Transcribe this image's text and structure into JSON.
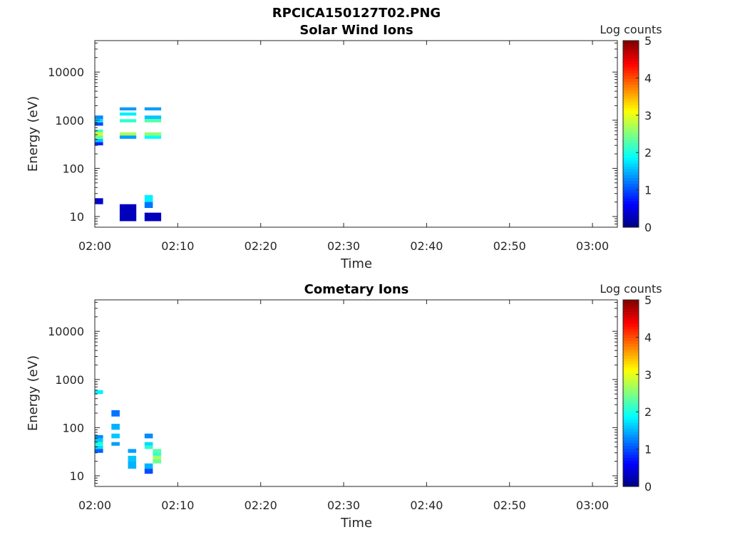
{
  "figure": {
    "title": "RPCICA150127T02.PNG"
  },
  "chart_data": [
    {
      "type": "heatmap",
      "title": "Solar Wind Ions",
      "xlabel": "Time",
      "ylabel": "Energy (eV)",
      "yscale": "log",
      "xlim": [
        "02:00",
        "03:03"
      ],
      "ylim": [
        6,
        45000
      ],
      "xticks": [
        "02:00",
        "02:10",
        "02:20",
        "02:30",
        "02:40",
        "02:50",
        "03:00"
      ],
      "yticks": [
        "10",
        "100",
        "1000",
        "10000"
      ],
      "colorbar": {
        "label": "Log counts",
        "range": [
          0,
          5
        ],
        "ticks": [
          "0",
          "1",
          "2",
          "3",
          "4",
          "5"
        ],
        "colormap": "jet"
      },
      "cells": [
        {
          "t0": "02:00",
          "t1": "02:01",
          "e0": 1050,
          "e1": 1250,
          "v": 1.3
        },
        {
          "t0": "02:00",
          "t1": "02:01",
          "e0": 900,
          "e1": 1050,
          "v": 1.7
        },
        {
          "t0": "02:00",
          "t1": "02:01",
          "e0": 770,
          "e1": 900,
          "v": 1.0
        },
        {
          "t0": "02:00",
          "t1": "02:01",
          "e0": 560,
          "e1": 640,
          "v": 2.2
        },
        {
          "t0": "02:00",
          "t1": "02:01",
          "e0": 480,
          "e1": 560,
          "v": 2.9
        },
        {
          "t0": "02:00",
          "t1": "02:01",
          "e0": 410,
          "e1": 480,
          "v": 2.4
        },
        {
          "t0": "02:00",
          "t1": "02:01",
          "e0": 350,
          "e1": 410,
          "v": 1.6
        },
        {
          "t0": "02:00",
          "t1": "02:01",
          "e0": 300,
          "e1": 350,
          "v": 0.8
        },
        {
          "t0": "02:00",
          "t1": "02:01",
          "e0": 18,
          "e1": 24,
          "v": 0.4
        },
        {
          "t0": "02:03",
          "t1": "02:05",
          "e0": 1600,
          "e1": 1850,
          "v": 1.4
        },
        {
          "t0": "02:03",
          "t1": "02:05",
          "e0": 1250,
          "e1": 1450,
          "v": 1.8
        },
        {
          "t0": "02:03",
          "t1": "02:05",
          "e0": 900,
          "e1": 1050,
          "v": 2.1
        },
        {
          "t0": "02:03",
          "t1": "02:05",
          "e0": 480,
          "e1": 560,
          "v": 2.7
        },
        {
          "t0": "02:03",
          "t1": "02:05",
          "e0": 410,
          "e1": 480,
          "v": 1.4
        },
        {
          "t0": "02:03",
          "t1": "02:05",
          "e0": 8,
          "e1": 18,
          "v": 0.3
        },
        {
          "t0": "02:06",
          "t1": "02:08",
          "e0": 1600,
          "e1": 1850,
          "v": 1.4
        },
        {
          "t0": "02:06",
          "t1": "02:08",
          "e0": 1050,
          "e1": 1250,
          "v": 1.6
        },
        {
          "t0": "02:06",
          "t1": "02:08",
          "e0": 900,
          "e1": 1050,
          "v": 2.3
        },
        {
          "t0": "02:06",
          "t1": "02:08",
          "e0": 480,
          "e1": 560,
          "v": 2.6
        },
        {
          "t0": "02:06",
          "t1": "02:08",
          "e0": 410,
          "e1": 480,
          "v": 1.9
        },
        {
          "t0": "02:06",
          "t1": "02:07",
          "e0": 20,
          "e1": 28,
          "v": 1.8
        },
        {
          "t0": "02:06",
          "t1": "02:07",
          "e0": 15,
          "e1": 20,
          "v": 1.2
        },
        {
          "t0": "02:06",
          "t1": "02:08",
          "e0": 8,
          "e1": 12,
          "v": 0.3
        }
      ]
    },
    {
      "type": "heatmap",
      "title": "Cometary Ions",
      "xlabel": "Time",
      "ylabel": "Energy (eV)",
      "yscale": "log",
      "xlim": [
        "02:00",
        "03:03"
      ],
      "ylim": [
        6,
        45000
      ],
      "xticks": [
        "02:00",
        "02:10",
        "02:20",
        "02:30",
        "02:40",
        "02:50",
        "03:00"
      ],
      "yticks": [
        "10",
        "100",
        "1000",
        "10000"
      ],
      "colorbar": {
        "label": "Log counts",
        "range": [
          0,
          5
        ],
        "ticks": [
          "0",
          "1",
          "2",
          "3",
          "4",
          "5"
        ],
        "colormap": "jet"
      },
      "cells": [
        {
          "t0": "02:00",
          "t1": "02:01",
          "e0": 500,
          "e1": 600,
          "v": 1.8
        },
        {
          "t0": "02:00",
          "t1": "02:01",
          "e0": 60,
          "e1": 70,
          "v": 1.3
        },
        {
          "t0": "02:00",
          "t1": "02:01",
          "e0": 50,
          "e1": 60,
          "v": 1.6
        },
        {
          "t0": "02:00",
          "t1": "02:01",
          "e0": 42,
          "e1": 50,
          "v": 2.0
        },
        {
          "t0": "02:00",
          "t1": "02:01",
          "e0": 36,
          "e1": 42,
          "v": 1.7
        },
        {
          "t0": "02:00",
          "t1": "02:01",
          "e0": 30,
          "e1": 36,
          "v": 1.1
        },
        {
          "t0": "02:02",
          "t1": "02:03",
          "e0": 170,
          "e1": 230,
          "v": 1.2
        },
        {
          "t0": "02:02",
          "t1": "02:03",
          "e0": 90,
          "e1": 120,
          "v": 1.5
        },
        {
          "t0": "02:02",
          "t1": "02:03",
          "e0": 60,
          "e1": 75,
          "v": 1.6
        },
        {
          "t0": "02:02",
          "t1": "02:03",
          "e0": 42,
          "e1": 50,
          "v": 1.4
        },
        {
          "t0": "02:04",
          "t1": "02:05",
          "e0": 30,
          "e1": 36,
          "v": 1.4
        },
        {
          "t0": "02:04",
          "t1": "02:05",
          "e0": 20,
          "e1": 26,
          "v": 1.6
        },
        {
          "t0": "02:04",
          "t1": "02:05",
          "e0": 14,
          "e1": 20,
          "v": 1.5
        },
        {
          "t0": "02:06",
          "t1": "02:07",
          "e0": 60,
          "e1": 75,
          "v": 1.3
        },
        {
          "t0": "02:06",
          "t1": "02:07",
          "e0": 42,
          "e1": 50,
          "v": 1.7
        },
        {
          "t0": "02:06",
          "t1": "02:07",
          "e0": 36,
          "e1": 42,
          "v": 2.1
        },
        {
          "t0": "02:07",
          "t1": "02:08",
          "e0": 30,
          "e1": 36,
          "v": 2.3
        },
        {
          "t0": "02:07",
          "t1": "02:08",
          "e0": 26,
          "e1": 30,
          "v": 2.1
        },
        {
          "t0": "02:07",
          "t1": "02:08",
          "e0": 22,
          "e1": 26,
          "v": 2.7
        },
        {
          "t0": "02:07",
          "t1": "02:08",
          "e0": 18,
          "e1": 22,
          "v": 2.4
        },
        {
          "t0": "02:06",
          "t1": "02:07",
          "e0": 14,
          "e1": 18,
          "v": 1.5
        },
        {
          "t0": "02:06",
          "t1": "02:07",
          "e0": 11,
          "e1": 14,
          "v": 1.0
        }
      ]
    }
  ]
}
